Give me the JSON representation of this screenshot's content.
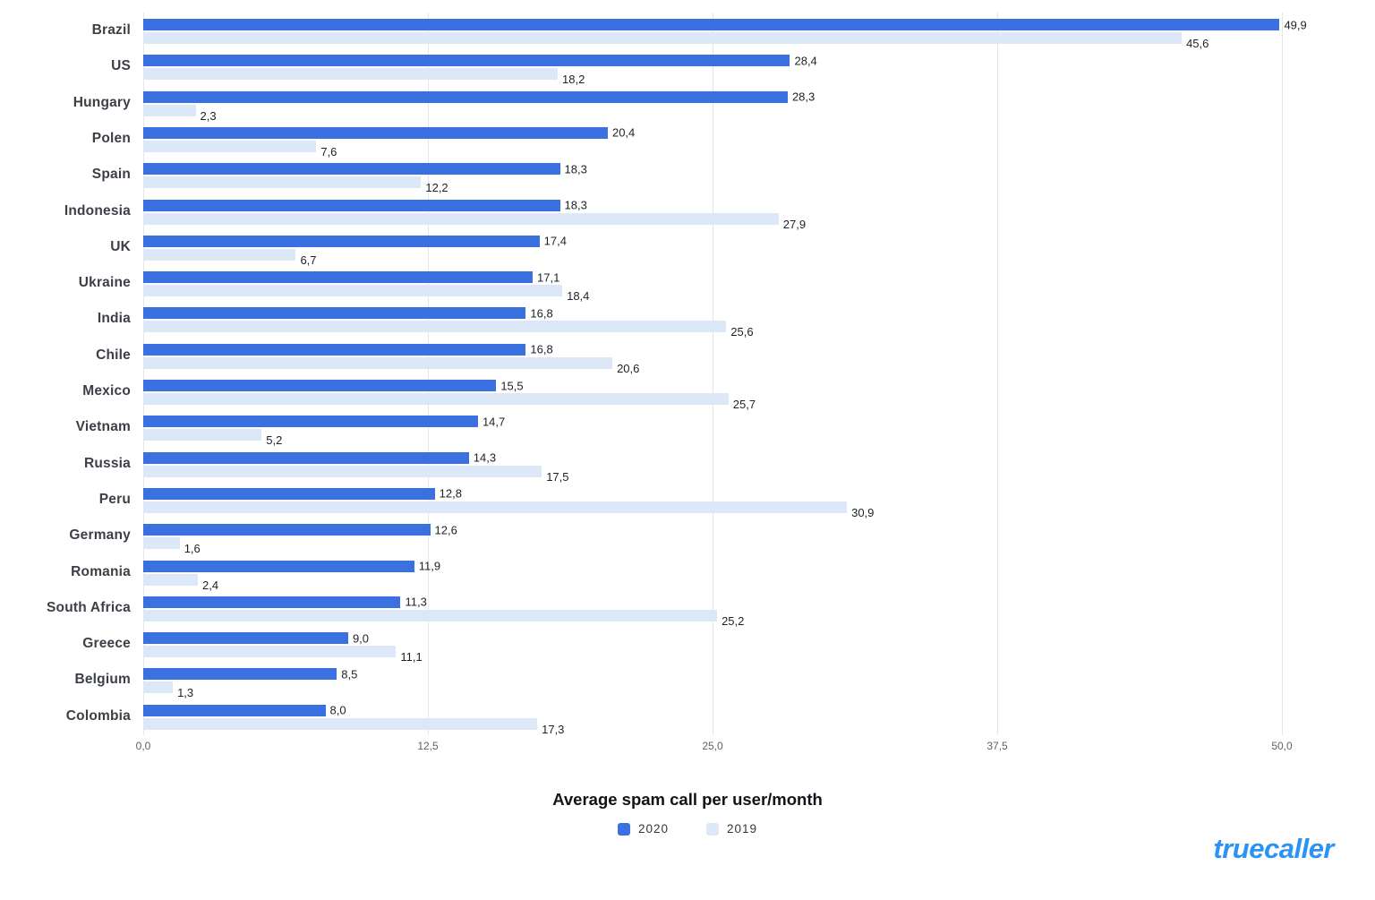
{
  "chart_data": {
    "type": "bar",
    "orientation": "horizontal",
    "title": "Average spam call per user/month",
    "categories": [
      "Brazil",
      "US",
      "Hungary",
      "Polen",
      "Spain",
      "Indonesia",
      "UK",
      "Ukraine",
      "India",
      "Chile",
      "Mexico",
      "Vietnam",
      "Russia",
      "Peru",
      "Germany",
      "Romania",
      "South Africa",
      "Greece",
      "Belgium",
      "Colombia"
    ],
    "series": [
      {
        "name": "2020",
        "color": "#3b70e0",
        "values": [
          49.9,
          28.4,
          28.3,
          20.4,
          18.3,
          18.3,
          17.4,
          17.1,
          16.8,
          16.8,
          15.5,
          14.7,
          14.3,
          12.8,
          12.6,
          11.9,
          11.3,
          9.0,
          8.5,
          8.0
        ]
      },
      {
        "name": "2019",
        "color": "#dce8f8",
        "values": [
          45.6,
          18.2,
          2.3,
          7.6,
          12.2,
          27.9,
          6.7,
          18.4,
          25.6,
          20.6,
          25.7,
          5.2,
          17.5,
          30.9,
          1.6,
          2.4,
          25.2,
          11.1,
          1.3,
          17.3
        ]
      }
    ],
    "xlim": [
      0,
      50
    ],
    "x_ticks": [
      {
        "value": 0,
        "label": "0,0"
      },
      {
        "value": 12.5,
        "label": "12,5"
      },
      {
        "value": 25,
        "label": "25,0"
      },
      {
        "value": 37.5,
        "label": "37,5"
      },
      {
        "value": 50,
        "label": "50,0"
      }
    ],
    "value_decimal_separator": ",",
    "grid": true,
    "legend_position": "bottom"
  },
  "legend": {
    "items": [
      {
        "label": "2020",
        "color": "#3b70e0"
      },
      {
        "label": "2019",
        "color": "#dce8f8"
      }
    ]
  },
  "branding": {
    "logo_text": "truecaller",
    "color": "#2b93f1"
  }
}
